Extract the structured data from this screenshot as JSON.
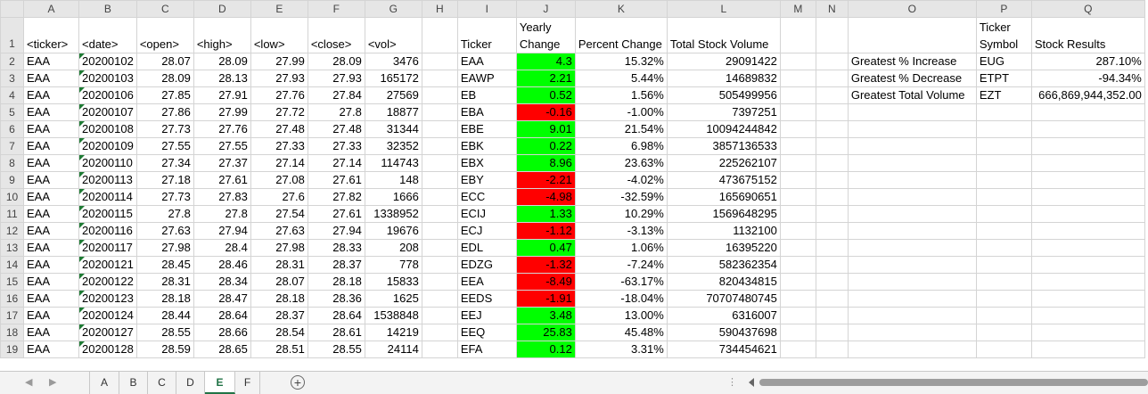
{
  "columns": [
    "A",
    "B",
    "C",
    "D",
    "E",
    "F",
    "G",
    "H",
    "I",
    "J",
    "K",
    "L",
    "M",
    "N",
    "O",
    "P",
    "Q"
  ],
  "header_row": {
    "num": "1",
    "A": "<ticker>",
    "B": "<date>",
    "C": "<open>",
    "D": "<high>",
    "E": "<low>",
    "F": "<close>",
    "G": "<vol>",
    "I": "Ticker",
    "J": "Yearly Change",
    "K": "Percent Change",
    "L": "Total Stock Volume",
    "P": "Ticker Symbol",
    "Q": "Stock Results"
  },
  "rows": [
    {
      "num": "2",
      "A": "EAA",
      "B": "20200102",
      "C": "28.07",
      "D": "28.09",
      "E": "27.99",
      "F": "28.09",
      "G": "3476",
      "I": "EAA",
      "J": "4.3",
      "J_color": "green",
      "K": "15.32%",
      "L": "29091422",
      "O": "Greatest % Increase",
      "P": "EUG",
      "Q": "287.10%"
    },
    {
      "num": "3",
      "A": "EAA",
      "B": "20200103",
      "C": "28.09",
      "D": "28.13",
      "E": "27.93",
      "F": "27.93",
      "G": "165172",
      "I": "EAWP",
      "J": "2.21",
      "J_color": "green",
      "K": "5.44%",
      "L": "14689832",
      "O": "Greatest % Decrease",
      "P": "ETPT",
      "Q": "-94.34%"
    },
    {
      "num": "4",
      "A": "EAA",
      "B": "20200106",
      "C": "27.85",
      "D": "27.91",
      "E": "27.76",
      "F": "27.84",
      "G": "27569",
      "I": "EB",
      "J": "0.52",
      "J_color": "green",
      "K": "1.56%",
      "L": "505499956",
      "O": "Greatest Total Volume",
      "P": "EZT",
      "Q": "666,869,944,352.00"
    },
    {
      "num": "5",
      "A": "EAA",
      "B": "20200107",
      "C": "27.86",
      "D": "27.99",
      "E": "27.72",
      "F": "27.8",
      "G": "18877",
      "I": "EBA",
      "J": "-0.16",
      "J_color": "red",
      "K": "-1.00%",
      "L": "7397251",
      "O": "",
      "P": "",
      "Q": ""
    },
    {
      "num": "6",
      "A": "EAA",
      "B": "20200108",
      "C": "27.73",
      "D": "27.76",
      "E": "27.48",
      "F": "27.48",
      "G": "31344",
      "I": "EBE",
      "J": "9.01",
      "J_color": "green",
      "K": "21.54%",
      "L": "10094244842",
      "O": "",
      "P": "",
      "Q": ""
    },
    {
      "num": "7",
      "A": "EAA",
      "B": "20200109",
      "C": "27.55",
      "D": "27.55",
      "E": "27.33",
      "F": "27.33",
      "G": "32352",
      "I": "EBK",
      "J": "0.22",
      "J_color": "green",
      "K": "6.98%",
      "L": "3857136533",
      "O": "",
      "P": "",
      "Q": ""
    },
    {
      "num": "8",
      "A": "EAA",
      "B": "20200110",
      "C": "27.34",
      "D": "27.37",
      "E": "27.14",
      "F": "27.14",
      "G": "114743",
      "I": "EBX",
      "J": "8.96",
      "J_color": "green",
      "K": "23.63%",
      "L": "225262107",
      "O": "",
      "P": "",
      "Q": ""
    },
    {
      "num": "9",
      "A": "EAA",
      "B": "20200113",
      "C": "27.18",
      "D": "27.61",
      "E": "27.08",
      "F": "27.61",
      "G": "148",
      "I": "EBY",
      "J": "-2.21",
      "J_color": "red",
      "K": "-4.02%",
      "L": "473675152",
      "O": "",
      "P": "",
      "Q": ""
    },
    {
      "num": "10",
      "A": "EAA",
      "B": "20200114",
      "C": "27.73",
      "D": "27.83",
      "E": "27.6",
      "F": "27.82",
      "G": "1666",
      "I": "ECC",
      "J": "-4.98",
      "J_color": "red",
      "K": "-32.59%",
      "L": "165690651",
      "O": "",
      "P": "",
      "Q": ""
    },
    {
      "num": "11",
      "A": "EAA",
      "B": "20200115",
      "C": "27.8",
      "D": "27.8",
      "E": "27.54",
      "F": "27.61",
      "G": "1338952",
      "I": "ECIJ",
      "J": "1.33",
      "J_color": "green",
      "K": "10.29%",
      "L": "1569648295",
      "O": "",
      "P": "",
      "Q": ""
    },
    {
      "num": "12",
      "A": "EAA",
      "B": "20200116",
      "C": "27.63",
      "D": "27.94",
      "E": "27.63",
      "F": "27.94",
      "G": "19676",
      "I": "ECJ",
      "J": "-1.12",
      "J_color": "red",
      "K": "-3.13%",
      "L": "1132100",
      "O": "",
      "P": "",
      "Q": ""
    },
    {
      "num": "13",
      "A": "EAA",
      "B": "20200117",
      "C": "27.98",
      "D": "28.4",
      "E": "27.98",
      "F": "28.33",
      "G": "208",
      "I": "EDL",
      "J": "0.47",
      "J_color": "green",
      "K": "1.06%",
      "L": "16395220",
      "O": "",
      "P": "",
      "Q": ""
    },
    {
      "num": "14",
      "A": "EAA",
      "B": "20200121",
      "C": "28.45",
      "D": "28.46",
      "E": "28.31",
      "F": "28.37",
      "G": "778",
      "I": "EDZG",
      "J": "-1.32",
      "J_color": "red",
      "K": "-7.24%",
      "L": "582362354",
      "O": "",
      "P": "",
      "Q": ""
    },
    {
      "num": "15",
      "A": "EAA",
      "B": "20200122",
      "C": "28.31",
      "D": "28.34",
      "E": "28.07",
      "F": "28.18",
      "G": "15833",
      "I": "EEA",
      "J": "-8.49",
      "J_color": "red",
      "K": "-63.17%",
      "L": "820434815",
      "O": "",
      "P": "",
      "Q": ""
    },
    {
      "num": "16",
      "A": "EAA",
      "B": "20200123",
      "C": "28.18",
      "D": "28.47",
      "E": "28.18",
      "F": "28.36",
      "G": "1625",
      "I": "EEDS",
      "J": "-1.91",
      "J_color": "red",
      "K": "-18.04%",
      "L": "70707480745",
      "O": "",
      "P": "",
      "Q": ""
    },
    {
      "num": "17",
      "A": "EAA",
      "B": "20200124",
      "C": "28.44",
      "D": "28.64",
      "E": "28.37",
      "F": "28.64",
      "G": "1538848",
      "I": "EEJ",
      "J": "3.48",
      "J_color": "green",
      "K": "13.00%",
      "L": "6316007",
      "O": "",
      "P": "",
      "Q": ""
    },
    {
      "num": "18",
      "A": "EAA",
      "B": "20200127",
      "C": "28.55",
      "D": "28.66",
      "E": "28.54",
      "F": "28.61",
      "G": "14219",
      "I": "EEQ",
      "J": "25.83",
      "J_color": "green",
      "K": "45.48%",
      "L": "590437698",
      "O": "",
      "P": "",
      "Q": ""
    },
    {
      "num": "19",
      "A": "EAA",
      "B": "20200128",
      "C": "28.59",
      "D": "28.65",
      "E": "28.51",
      "F": "28.55",
      "G": "24114",
      "I": "EFA",
      "J": "0.12",
      "J_color": "green",
      "K": "3.31%",
      "L": "734454621",
      "O": "",
      "P": "",
      "Q": ""
    }
  ],
  "colors": {
    "positive": "#00ff00",
    "negative": "#ff0000",
    "active_tab": "#217346"
  },
  "tabs": [
    {
      "label": "A",
      "active": false
    },
    {
      "label": "B",
      "active": false
    },
    {
      "label": "C",
      "active": false
    },
    {
      "label": "D",
      "active": false
    },
    {
      "label": "E",
      "active": true
    },
    {
      "label": "F",
      "active": false
    }
  ],
  "icons": {
    "add_sheet": "plus-circle-icon",
    "scroll_left": "chevron-left-icon",
    "scroll_right": "chevron-right-icon",
    "more": "ellipsis-icon"
  }
}
